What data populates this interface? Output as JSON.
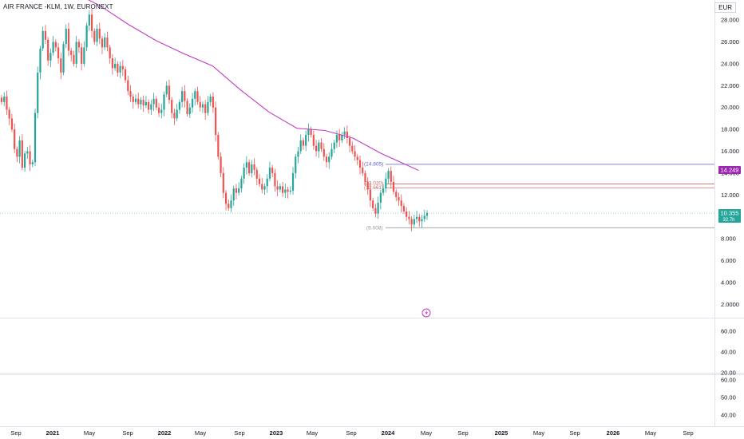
{
  "header": {
    "title": "AIR FRANCE -KLM, 1W, EURONEXT",
    "currency": "EUR"
  },
  "price_axis_ticks": [
    "28.000",
    "26.000",
    "24.000",
    "22.000",
    "20.000",
    "18.000",
    "16.000",
    "14.000",
    "12.000",
    "10.000",
    "8.000",
    "6.000",
    "4.000",
    "2.0000"
  ],
  "osc1_ticks": [
    "60.00",
    "40.00",
    "20.00"
  ],
  "osc2_ticks": [
    "60.00",
    "50.00",
    "40.00"
  ],
  "x_ticks": [
    {
      "label": "Sep",
      "bold": false
    },
    {
      "label": "2021",
      "bold": true
    },
    {
      "label": "May",
      "bold": false
    },
    {
      "label": "Sep",
      "bold": false
    },
    {
      "label": "2022",
      "bold": true
    },
    {
      "label": "May",
      "bold": false
    },
    {
      "label": "Sep",
      "bold": false
    },
    {
      "label": "2023",
      "bold": true
    },
    {
      "label": "May",
      "bold": false
    },
    {
      "label": "Sep",
      "bold": false
    },
    {
      "label": "2024",
      "bold": true
    },
    {
      "label": "May",
      "bold": false
    },
    {
      "label": "Sep",
      "bold": false
    },
    {
      "label": "2025",
      "bold": true
    },
    {
      "label": "May",
      "bold": false
    },
    {
      "label": "Sep",
      "bold": false
    },
    {
      "label": "2026",
      "bold": true
    },
    {
      "label": "May",
      "bold": false
    },
    {
      "label": "Sep",
      "bold": false
    }
  ],
  "labels": {
    "ma_value": "14.249",
    "last_price": "10.355",
    "last_sub": "32.7h",
    "level_14805": "(14.805)",
    "level_13020": "(13.020)",
    "level_12661": "(12.661)",
    "level_9008": "(9.008)"
  },
  "colors": {
    "up": "#26a69a",
    "down": "#ef5350",
    "ma": "#c43bc4",
    "level_blue": "#5b5bd6",
    "level_red": "#c26767",
    "level_gray": "#9598a1",
    "price_tag": "#26a69a",
    "ma_tag": "#9c27b0"
  },
  "chart_data": {
    "type": "candlestick",
    "symbol": "AIR FRANCE -KLM",
    "interval": "1W",
    "exchange": "EURONEXT",
    "currency": "EUR",
    "ylim": [
      1.2,
      29.4
    ],
    "x_range": [
      "2020-08",
      "2026-11"
    ],
    "candles_close": [
      20.5,
      21.0,
      19.8,
      19.0,
      18.0,
      16.2,
      15.5,
      17.0,
      14.5,
      15.8,
      16.0,
      14.8,
      15.0,
      19.5,
      23.2,
      25.4,
      27.0,
      26.2,
      24.3,
      25.0,
      26.0,
      25.5,
      24.5,
      23.2,
      25.8,
      27.2,
      25.2,
      24.8,
      24.0,
      26.0,
      25.5,
      24.0,
      25.5,
      27.5,
      28.5,
      27.0,
      26.0,
      27.2,
      26.3,
      25.5,
      26.4,
      25.5,
      24.5,
      23.6,
      24.0,
      23.2,
      23.8,
      23.5,
      22.5,
      21.5,
      21.0,
      20.5,
      20.8,
      20.3,
      20.7,
      20.2,
      20.5,
      19.8,
      20.3,
      20.8,
      20.0,
      19.5,
      19.8,
      21.2,
      22.0,
      20.7,
      19.5,
      19.0,
      19.8,
      20.5,
      21.5,
      20.6,
      19.4,
      20.0,
      20.8,
      21.5,
      20.5,
      20.0,
      20.3,
      19.5,
      20.5,
      21.0,
      20.0,
      17.5,
      15.5,
      14.0,
      12.2,
      11.2,
      10.8,
      11.5,
      12.6,
      12.2,
      12.6,
      13.5,
      14.5,
      15.0,
      14.0,
      14.8,
      14.3,
      13.5,
      13.0,
      12.5,
      12.8,
      13.5,
      14.5,
      14.0,
      12.8,
      12.5,
      12.8,
      12.2,
      12.5,
      12.3,
      12.4,
      14.0,
      15.5,
      16.0,
      17.0,
      16.5,
      17.5,
      18.0,
      17.5,
      16.5,
      16.0,
      16.8,
      16.2,
      15.5,
      15.0,
      15.5,
      16.2,
      16.8,
      17.5,
      17.0,
      17.5,
      17.8,
      17.2,
      16.5,
      16.0,
      15.5,
      15.2,
      14.5,
      14.0,
      13.2,
      12.5,
      11.5,
      10.8,
      10.3,
      11.3,
      12.2,
      12.6,
      13.5,
      14.2,
      13.2,
      12.3,
      11.8,
      11.5,
      11.0,
      10.5,
      10.0,
      9.8,
      9.3,
      9.8,
      10.0,
      9.6,
      9.8,
      10.1,
      10.36
    ],
    "moving_average": {
      "name": "",
      "points": [
        {
          "x": "2020-12",
          "y": 31.0
        },
        {
          "x": "2021-03",
          "y": 30.6
        },
        {
          "x": "2021-06",
          "y": 29.3
        },
        {
          "x": "2021-09",
          "y": 27.6
        },
        {
          "x": "2021-12",
          "y": 26.1
        },
        {
          "x": "2022-03",
          "y": 24.9
        },
        {
          "x": "2022-06",
          "y": 23.8
        },
        {
          "x": "2022-09",
          "y": 21.6
        },
        {
          "x": "2022-12",
          "y": 19.6
        },
        {
          "x": "2023-03",
          "y": 18.1
        },
        {
          "x": "2023-06",
          "y": 17.9
        },
        {
          "x": "2023-09",
          "y": 17.2
        },
        {
          "x": "2023-12",
          "y": 15.8
        },
        {
          "x": "2024-04",
          "y": 14.25
        }
      ]
    },
    "levels": [
      {
        "label": "(14.805)",
        "value": 14.805,
        "color": "level_blue"
      },
      {
        "label": "(13.020)",
        "value": 13.02,
        "color": "level_red"
      },
      {
        "label": "(12.661)",
        "value": 12.661,
        "color": "level_red"
      },
      {
        "label": "(9.008)",
        "value": 9.008,
        "color": "level_gray"
      }
    ],
    "last_price": 10.355,
    "ma_last": 14.249,
    "grid": false,
    "legend": "none"
  }
}
